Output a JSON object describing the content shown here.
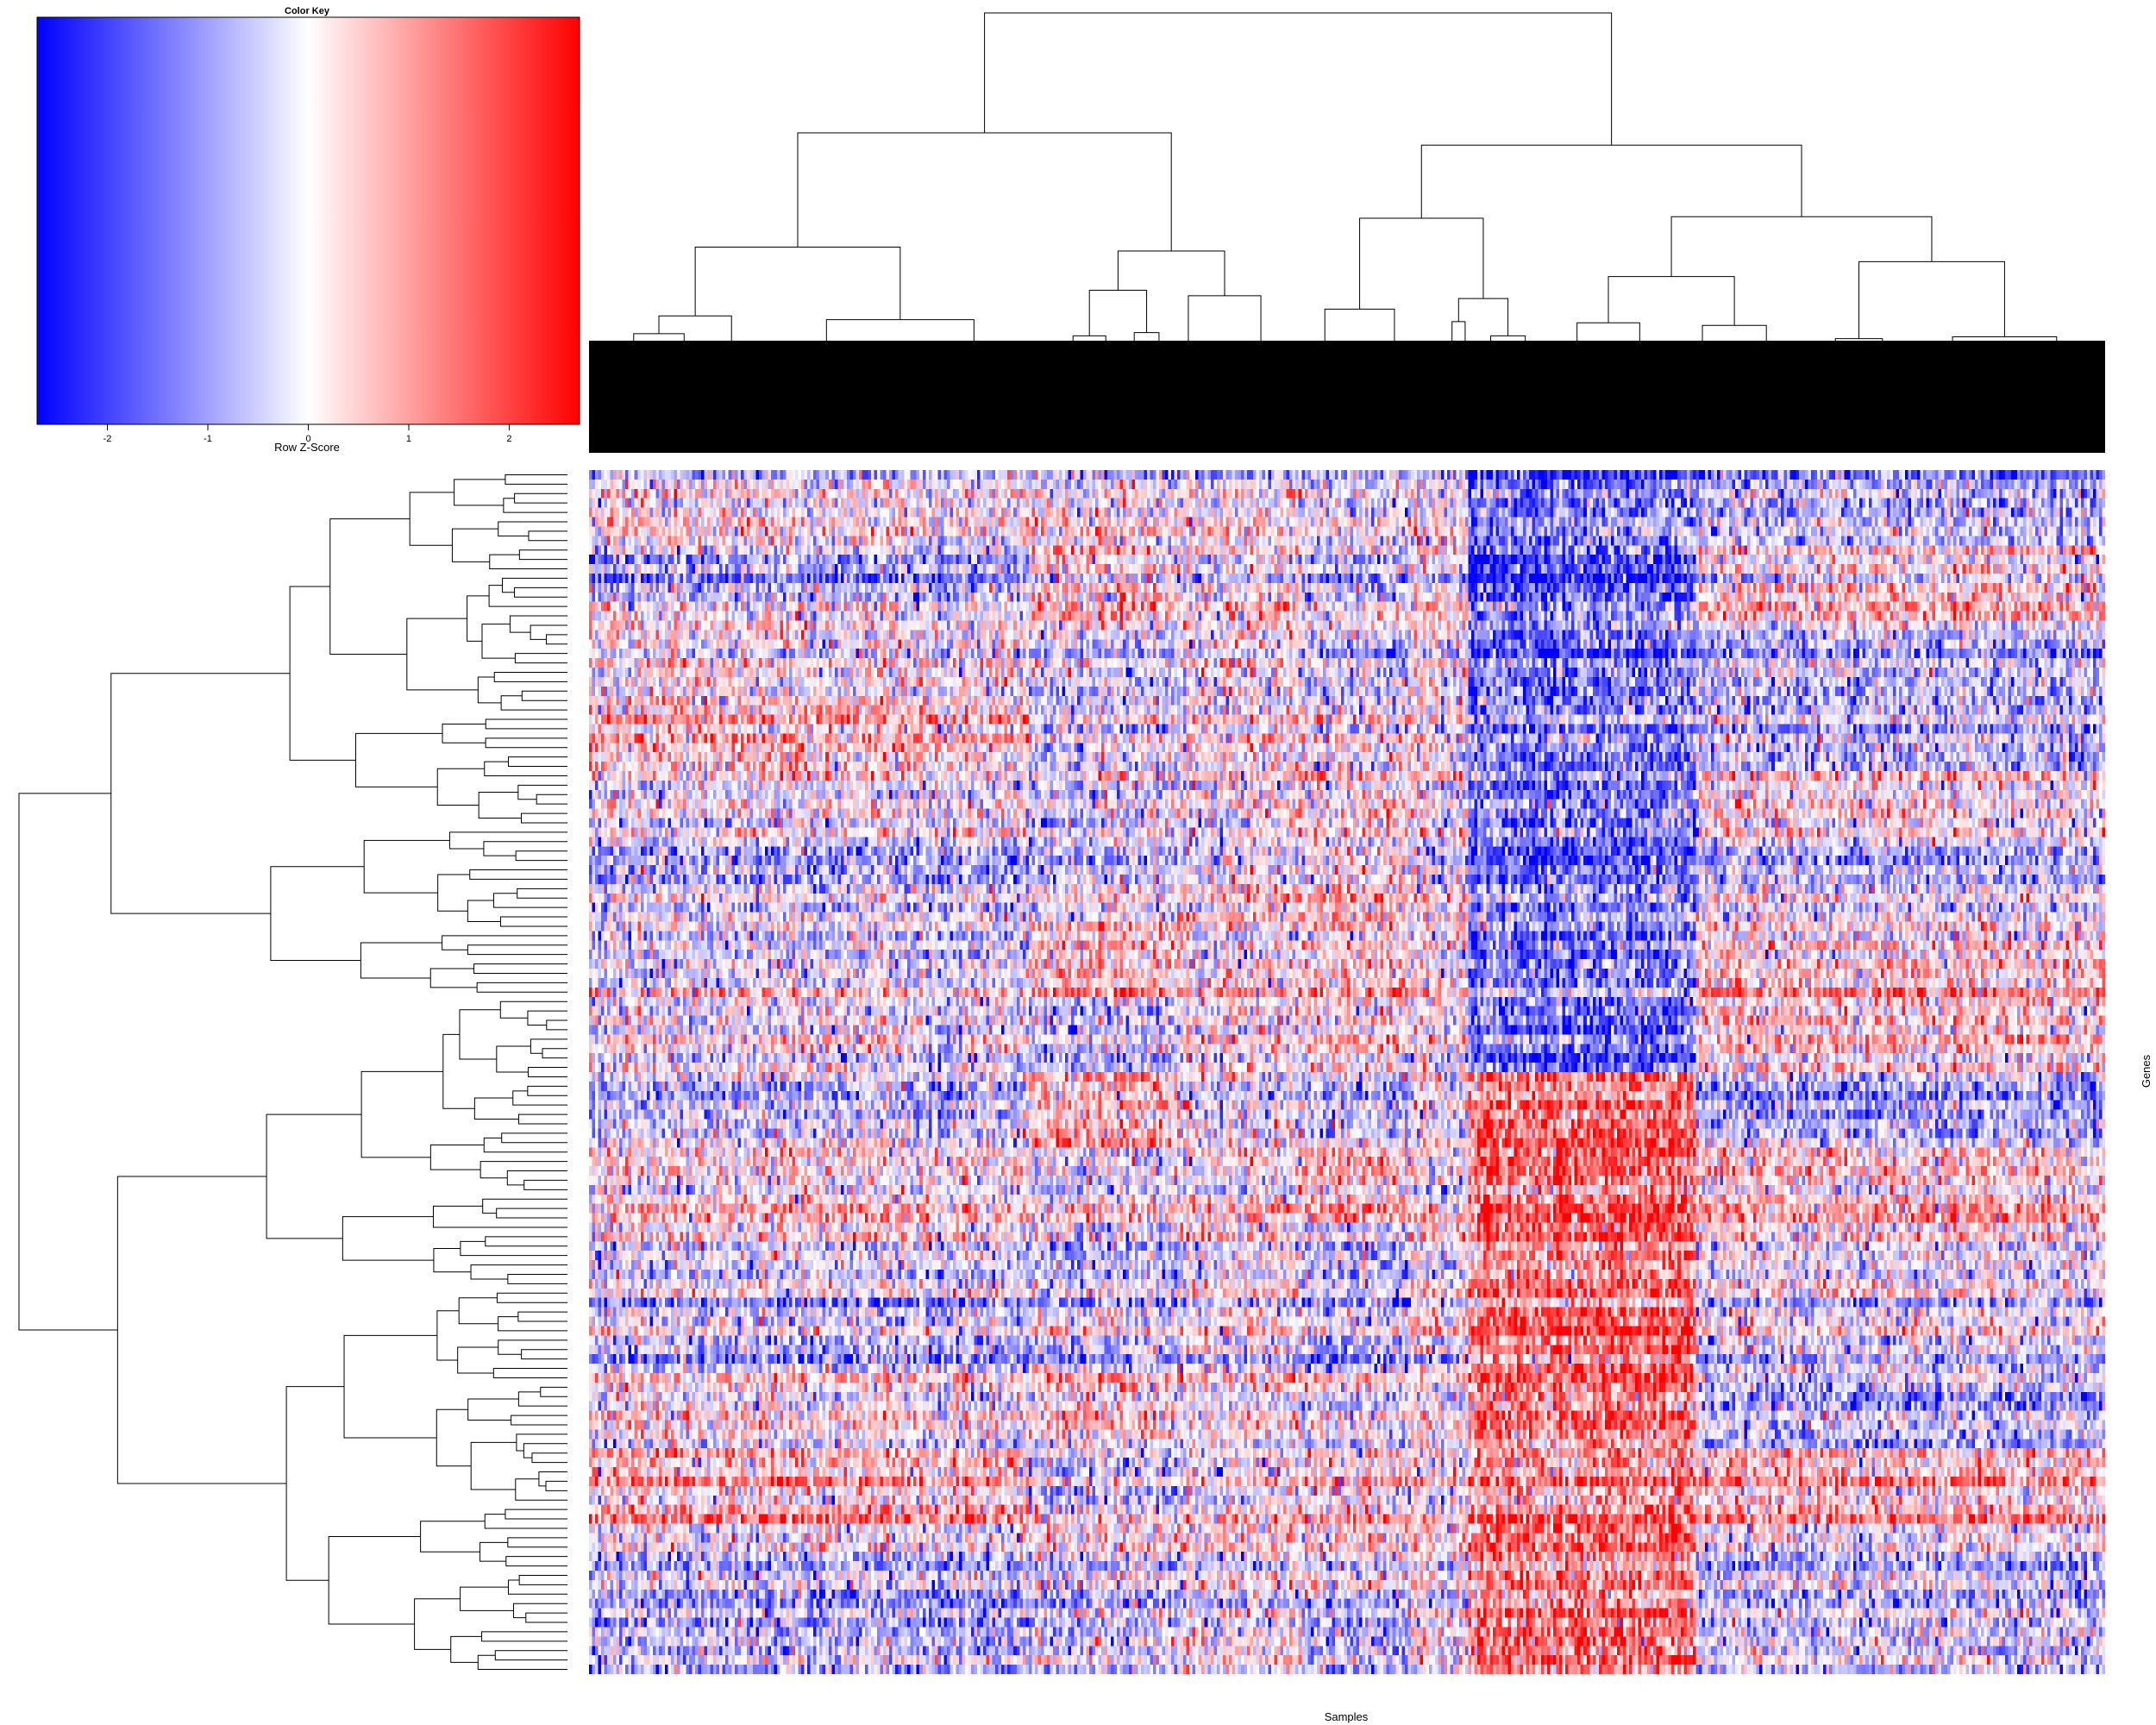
{
  "chart_data": {
    "type": "heatmap",
    "title": "",
    "xlabel": "Samples",
    "ylabel": "Genes",
    "color_key": {
      "title": "Color Key",
      "label": "Row Z-Score",
      "range": [
        -2.7,
        2.7
      ],
      "ticks": [
        -2,
        -1,
        0,
        1,
        2
      ],
      "tick_labels": [
        "-2",
        "-1",
        "0",
        "1",
        "2"
      ],
      "colors": [
        "#0000ff",
        "#ffffff",
        "#ff0000"
      ]
    },
    "row_dendrogram": true,
    "column_dendrogram": true,
    "n_rows": 128,
    "n_cols": 500,
    "column_clusters": [
      {
        "start": 0.0,
        "end": 0.29,
        "pattern": "mixed"
      },
      {
        "start": 0.29,
        "end": 0.39,
        "pattern": "mixed"
      },
      {
        "start": 0.47,
        "end": 0.54,
        "pattern": "contrast"
      },
      {
        "start": 0.58,
        "end": 0.73,
        "pattern": "top-blue bottom-red"
      },
      {
        "start": 0.73,
        "end": 1.0,
        "pattern": "mixed"
      }
    ]
  }
}
